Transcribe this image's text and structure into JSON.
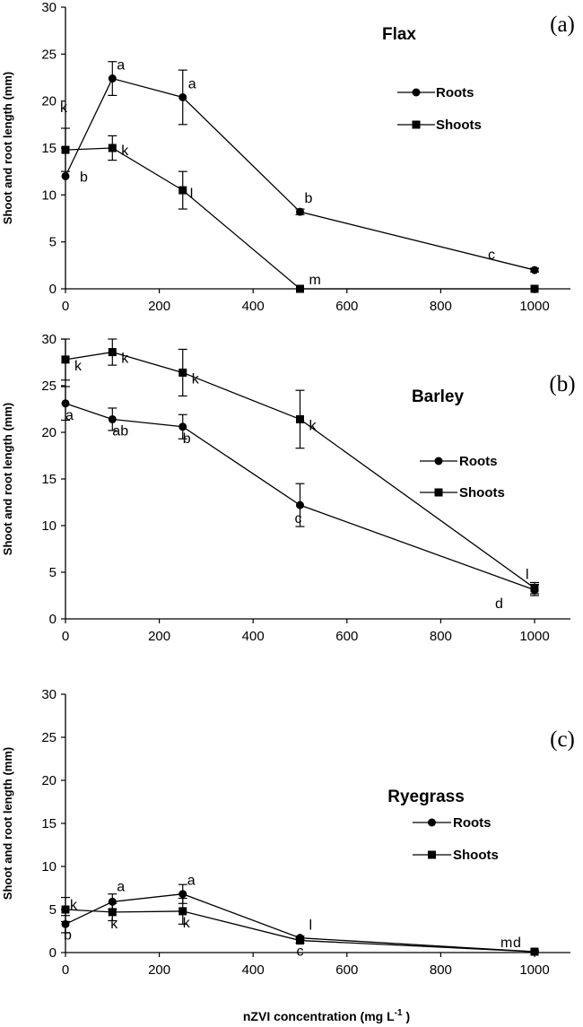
{
  "figure": {
    "xlabel": "nZVI concentration (mg L",
    "xlabel_sup": "-1",
    "xlabel_end": " )"
  },
  "chart_data": [
    {
      "type": "line",
      "panel": "(a)",
      "title": "Flax",
      "ylabel": "Shoot and root length (mm)",
      "xlabel": "",
      "xlim": [
        0,
        1100
      ],
      "ylim": [
        0,
        30
      ],
      "xticks": [
        0,
        200,
        400,
        600,
        800,
        1000
      ],
      "yticks": [
        0,
        5,
        10,
        15,
        20,
        25,
        30
      ],
      "legend_position": "right",
      "series": [
        {
          "name": "Roots",
          "marker": "circle",
          "x": [
            0,
            100,
            250,
            500,
            1000
          ],
          "y": [
            12,
            22.4,
            20.4,
            8.2,
            2
          ],
          "err": [
            0,
            1.8,
            2.9,
            0.3,
            0.2
          ]
        },
        {
          "name": "Shoots",
          "marker": "square",
          "x": [
            0,
            100,
            250,
            500,
            1000
          ],
          "y": [
            14.8,
            15,
            10.5,
            0,
            0
          ],
          "err": [
            2.3,
            1.3,
            2,
            0,
            0
          ]
        }
      ],
      "annotations": [
        {
          "text": "k",
          "x": 0,
          "y": 15
        },
        {
          "text": "b",
          "x": 0,
          "y": 12
        },
        {
          "text": "a",
          "x": 100,
          "y": 22.4
        },
        {
          "text": "k",
          "x": 100,
          "y": 15
        },
        {
          "text": "a",
          "x": 250,
          "y": 20.4
        },
        {
          "text": "l",
          "x": 250,
          "y": 10.5
        },
        {
          "text": "b",
          "x": 500,
          "y": 8.2
        },
        {
          "text": "m",
          "x": 500,
          "y": 0
        },
        {
          "text": "c",
          "x": 1000,
          "y": 2
        }
      ]
    },
    {
      "type": "line",
      "panel": "(b)",
      "title": "Barley",
      "ylabel": "Shoot and root length (mm)",
      "xlabel": "",
      "xlim": [
        0,
        1100
      ],
      "ylim": [
        0,
        30
      ],
      "xticks": [
        0,
        200,
        400,
        600,
        800,
        1000
      ],
      "yticks": [
        0,
        5,
        10,
        15,
        20,
        25,
        30
      ],
      "legend_position": "right",
      "series": [
        {
          "name": "Roots",
          "marker": "circle",
          "x": [
            0,
            100,
            250,
            500,
            1000
          ],
          "y": [
            23.1,
            21.4,
            20.6,
            12.2,
            3.1
          ],
          "err": [
            1.8,
            1.2,
            1.3,
            2.3,
            0.6
          ]
        },
        {
          "name": "Shoots",
          "marker": "square",
          "x": [
            0,
            100,
            250,
            500,
            1000
          ],
          "y": [
            27.8,
            28.6,
            26.4,
            21.4,
            3.3
          ],
          "err": [
            2.2,
            1.4,
            2.5,
            3.1,
            0.6
          ]
        }
      ],
      "annotations": [
        {
          "text": "k",
          "x": 0,
          "y": 27.8
        },
        {
          "text": "a",
          "x": 0,
          "y": 23.1
        },
        {
          "text": "k",
          "x": 100,
          "y": 28.6
        },
        {
          "text": "ab",
          "x": 100,
          "y": 21.4
        },
        {
          "text": "k",
          "x": 250,
          "y": 26.4
        },
        {
          "text": "b",
          "x": 250,
          "y": 20.6
        },
        {
          "text": "k",
          "x": 500,
          "y": 21.4
        },
        {
          "text": "c",
          "x": 500,
          "y": 12.2
        },
        {
          "text": "l",
          "x": 1000,
          "y": 3.3
        },
        {
          "text": "d",
          "x": 1000,
          "y": 3.1
        }
      ]
    },
    {
      "type": "line",
      "panel": "(c)",
      "title": "Ryegrass",
      "ylabel": "Shoot and root length (mm)",
      "xlabel": "nZVI concentration (mg L-1 )",
      "xlim": [
        0,
        1100
      ],
      "ylim": [
        0,
        30
      ],
      "xticks": [
        0,
        200,
        400,
        600,
        800,
        1000
      ],
      "yticks": [
        0,
        5,
        10,
        15,
        20,
        25,
        30
      ],
      "legend_position": "right",
      "series": [
        {
          "name": "Roots",
          "marker": "circle",
          "x": [
            0,
            100,
            250,
            500,
            1000
          ],
          "y": [
            3.3,
            5.9,
            6.8,
            1.7,
            0.1
          ],
          "err": [
            1,
            0.9,
            1.1,
            0.2,
            0.1
          ]
        },
        {
          "name": "Shoots",
          "marker": "square",
          "x": [
            0,
            100,
            250,
            500,
            1000
          ],
          "y": [
            5,
            4.7,
            4.8,
            1.4,
            0.1
          ],
          "err": [
            1.4,
            1,
            1.5,
            0.3,
            0.1
          ]
        }
      ],
      "annotations": [
        {
          "text": "k",
          "x": 0,
          "y": 5
        },
        {
          "text": "b",
          "x": 0,
          "y": 3.3
        },
        {
          "text": "a",
          "x": 100,
          "y": 5.9
        },
        {
          "text": "k",
          "x": 100,
          "y": 4.7
        },
        {
          "text": "a",
          "x": 250,
          "y": 6.8
        },
        {
          "text": "k",
          "x": 250,
          "y": 4.8
        },
        {
          "text": "c",
          "x": 500,
          "y": 1.7
        },
        {
          "text": "l",
          "x": 500,
          "y": 1.4
        },
        {
          "text": "m",
          "x": 1000,
          "y": 0.1
        },
        {
          "text": "d",
          "x": 1000,
          "y": 0.1
        }
      ]
    }
  ]
}
